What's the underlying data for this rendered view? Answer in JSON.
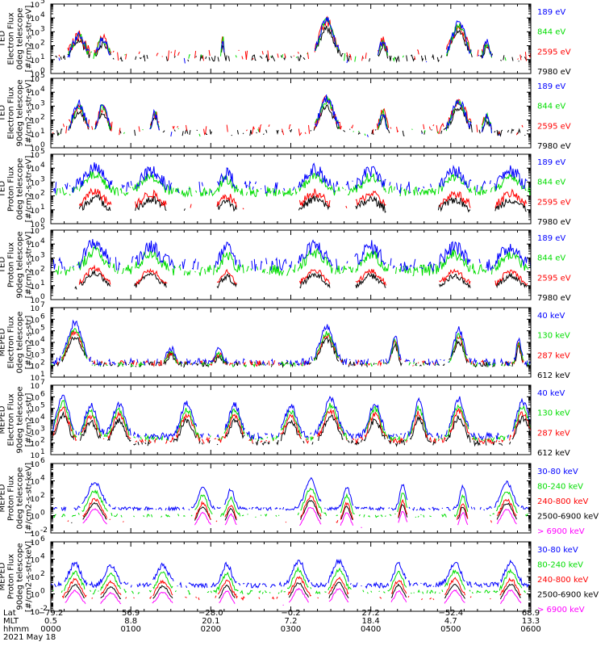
{
  "colors": {
    "blue": "#0000ff",
    "green": "#00dd00",
    "red": "#ff0000",
    "black": "#000000",
    "magenta": "#ff00ff"
  },
  "footer": {
    "row_labels": [
      "Lat",
      "MLT",
      "hhmm",
      "2021 May 18"
    ],
    "columns": [
      {
        "lat": "−79.2",
        "mlt": "0.5",
        "hhmm": "0000"
      },
      {
        "lat": "56.9",
        "mlt": "8.8",
        "hhmm": "0100"
      },
      {
        "lat": "−28.0",
        "mlt": "20.1",
        "hhmm": "0200"
      },
      {
        "lat": "−0.2",
        "mlt": "7.2",
        "hhmm": "0300"
      },
      {
        "lat": "27.2",
        "mlt": "18.4",
        "hhmm": "0400"
      },
      {
        "lat": "−52.4",
        "mlt": "4.7",
        "hhmm": "0500"
      },
      {
        "lat": "68.9",
        "mlt": "13.3",
        "hhmm": "0600"
      }
    ]
  },
  "chart_data": [
    {
      "type": "line",
      "ylabel": [
        "TED",
        "Electron Flux",
        "0deg telescope",
        "[#/cm2-s-str-eV]"
      ],
      "y_log_range": [
        0,
        5
      ],
      "yticks": [
        {
          "exp": "0"
        },
        {
          "exp": "1"
        },
        {
          "exp": "2"
        },
        {
          "exp": "3"
        },
        {
          "exp": "4"
        },
        {
          "exp": "5"
        }
      ],
      "x_range_hours": [
        0,
        6
      ],
      "series": [
        {
          "name": "7980 eV",
          "color": "#000000",
          "base": 1.1,
          "noise": 0.25,
          "fill": 0.45
        },
        {
          "name": "2595 eV",
          "color": "#ff0000",
          "base": 1.3,
          "noise": 0.4,
          "fill": 0.35
        },
        {
          "name": "844 eV",
          "color": "#00dd00",
          "base": 1.1,
          "noise": 0.3,
          "fill": 0.2
        },
        {
          "name": "189 eV",
          "color": "#0000ff",
          "base": 1.0,
          "noise": 0.3,
          "fill": 0.1
        }
      ],
      "events": [
        [
          0.35,
          0.1,
          1.8
        ],
        [
          0.65,
          0.08,
          1.5
        ],
        [
          2.15,
          0.02,
          1.6
        ],
        [
          3.45,
          0.12,
          3.0
        ],
        [
          4.15,
          0.05,
          1.4
        ],
        [
          5.1,
          0.12,
          2.6
        ],
        [
          5.45,
          0.05,
          1.2
        ]
      ]
    },
    {
      "type": "line",
      "ylabel": [
        "TED",
        "Electron Flux",
        "90deg telescope",
        "[#/cm2-s-str-eV]"
      ],
      "y_log_range": [
        0,
        5
      ],
      "yticks": [
        {
          "exp": "0"
        },
        {
          "exp": "1"
        },
        {
          "exp": "2"
        },
        {
          "exp": "3"
        },
        {
          "exp": "4"
        },
        {
          "exp": "5"
        }
      ],
      "x_range_hours": [
        0,
        6
      ],
      "series": [
        {
          "name": "7980 eV",
          "color": "#000000",
          "base": 1.1,
          "noise": 0.25,
          "fill": 0.45
        },
        {
          "name": "2595 eV",
          "color": "#ff0000",
          "base": 1.3,
          "noise": 0.4,
          "fill": 0.35
        },
        {
          "name": "844 eV",
          "color": "#00dd00",
          "base": 1.1,
          "noise": 0.3,
          "fill": 0.2
        },
        {
          "name": "189 eV",
          "color": "#0000ff",
          "base": 1.0,
          "noise": 0.3,
          "fill": 0.1
        }
      ],
      "events": [
        [
          0.35,
          0.1,
          2.2
        ],
        [
          0.65,
          0.08,
          2.0
        ],
        [
          1.3,
          0.05,
          1.5
        ],
        [
          3.45,
          0.12,
          2.6
        ],
        [
          4.15,
          0.05,
          1.6
        ],
        [
          5.1,
          0.12,
          2.4
        ],
        [
          5.45,
          0.05,
          1.2
        ]
      ]
    },
    {
      "type": "line",
      "ylabel": [
        "TED",
        "Proton Flux",
        "0deg telescope",
        "[#/cm2-s-str-eV]"
      ],
      "y_log_range": [
        0,
        5
      ],
      "yticks": [
        {
          "exp": "0"
        },
        {
          "exp": "1"
        },
        {
          "exp": "2"
        },
        {
          "exp": "3"
        },
        {
          "exp": "4"
        },
        {
          "exp": "5"
        }
      ],
      "x_range_hours": [
        0,
        6
      ],
      "series": [
        {
          "name": "7980 eV",
          "color": "#000000",
          "base": 0.9,
          "noise": 0.3,
          "fill": 0.05
        },
        {
          "name": "2595 eV",
          "color": "#ff0000",
          "base": 1.2,
          "noise": 0.3,
          "fill": 0.05
        },
        {
          "name": "844 eV",
          "color": "#00dd00",
          "base": 2.3,
          "noise": 0.35,
          "fill": 0.8
        },
        {
          "name": "189 eV",
          "color": "#0000ff",
          "base": 2.6,
          "noise": 0.45,
          "fill": 0.55
        }
      ],
      "events": [
        [
          0.55,
          0.15,
          1.4
        ],
        [
          1.25,
          0.15,
          1.2
        ],
        [
          2.2,
          0.1,
          1.0
        ],
        [
          3.3,
          0.15,
          1.3
        ],
        [
          4.0,
          0.15,
          1.2
        ],
        [
          5.05,
          0.15,
          1.2
        ],
        [
          5.75,
          0.15,
          1.2
        ]
      ]
    },
    {
      "type": "line",
      "ylabel": [
        "TED",
        "Proton Flux",
        "90deg telescope",
        "[#/cm2-s-str-eV]"
      ],
      "y_log_range": [
        0,
        5
      ],
      "yticks": [
        {
          "exp": "0"
        },
        {
          "exp": "1"
        },
        {
          "exp": "2"
        },
        {
          "exp": "3"
        },
        {
          "exp": "4"
        },
        {
          "exp": "5"
        }
      ],
      "x_range_hours": [
        0,
        6
      ],
      "series": [
        {
          "name": "7980 eV",
          "color": "#000000",
          "base": 0.8,
          "noise": 0.2,
          "fill": 0.03
        },
        {
          "name": "2595 eV",
          "color": "#ff0000",
          "base": 1.0,
          "noise": 0.2,
          "fill": 0.03
        },
        {
          "name": "844 eV",
          "color": "#00dd00",
          "base": 2.1,
          "noise": 0.4,
          "fill": 0.75
        },
        {
          "name": "189 eV",
          "color": "#0000ff",
          "base": 2.5,
          "noise": 0.5,
          "fill": 0.55
        }
      ],
      "events": [
        [
          0.55,
          0.15,
          1.6
        ],
        [
          1.25,
          0.15,
          1.4
        ],
        [
          2.2,
          0.1,
          1.2
        ],
        [
          3.3,
          0.15,
          1.4
        ],
        [
          4.0,
          0.15,
          1.3
        ],
        [
          5.05,
          0.15,
          1.3
        ],
        [
          5.75,
          0.15,
          1.3
        ]
      ]
    },
    {
      "type": "line",
      "ylabel": [
        "MEPED",
        "Electron Flux",
        "0deg telescope",
        "[#/cm2-s-str]"
      ],
      "y_log_range": [
        1,
        7
      ],
      "yticks": [
        {
          "exp": "1"
        },
        {
          "exp": "2"
        },
        {
          "exp": "3"
        },
        {
          "exp": "4"
        },
        {
          "exp": "5"
        },
        {
          "exp": "6"
        },
        {
          "exp": "7"
        }
      ],
      "x_range_hours": [
        0,
        6
      ],
      "series": [
        {
          "name": "612 keV",
          "color": "#000000",
          "base": 2.1,
          "noise": 0.25,
          "fill": 0.6
        },
        {
          "name": "287 keV",
          "color": "#ff0000",
          "base": 2.2,
          "noise": 0.25,
          "fill": 0.55
        },
        {
          "name": "130 keV",
          "color": "#00dd00",
          "base": 2.1,
          "noise": 0.2,
          "fill": 0.5
        },
        {
          "name": "40 keV",
          "color": "#0000ff",
          "base": 2.3,
          "noise": 0.3,
          "fill": 0.6
        }
      ],
      "events": [
        [
          0.3,
          0.12,
          3.4
        ],
        [
          1.5,
          0.06,
          1.2
        ],
        [
          2.1,
          0.06,
          1.0
        ],
        [
          3.45,
          0.12,
          3.0
        ],
        [
          4.3,
          0.05,
          2.4
        ],
        [
          5.1,
          0.08,
          2.8
        ],
        [
          5.85,
          0.04,
          2.0
        ]
      ]
    },
    {
      "type": "line",
      "ylabel": [
        "MEPED",
        "Electron Flux",
        "90deg telescope",
        "[#/cm2-s-str]"
      ],
      "y_log_range": [
        1,
        7
      ],
      "yticks": [
        {
          "exp": "1"
        },
        {
          "exp": "2"
        },
        {
          "exp": "3"
        },
        {
          "exp": "4"
        },
        {
          "exp": "5"
        },
        {
          "exp": "6"
        },
        {
          "exp": "7"
        }
      ],
      "x_range_hours": [
        0,
        6
      ],
      "series": [
        {
          "name": "612 keV",
          "color": "#000000",
          "base": 2.0,
          "noise": 0.25,
          "fill": 0.6
        },
        {
          "name": "287 keV",
          "color": "#ff0000",
          "base": 2.2,
          "noise": 0.25,
          "fill": 0.6
        },
        {
          "name": "130 keV",
          "color": "#00dd00",
          "base": 2.4,
          "noise": 0.25,
          "fill": 0.65
        },
        {
          "name": "40 keV",
          "color": "#0000ff",
          "base": 2.6,
          "noise": 0.3,
          "fill": 0.7
        }
      ],
      "events": [
        [
          0.15,
          0.1,
          3.5
        ],
        [
          0.5,
          0.1,
          2.6
        ],
        [
          0.85,
          0.1,
          2.8
        ],
        [
          1.7,
          0.1,
          2.8
        ],
        [
          2.3,
          0.1,
          2.7
        ],
        [
          3.0,
          0.1,
          2.6
        ],
        [
          3.5,
          0.12,
          3.2
        ],
        [
          4.05,
          0.1,
          2.8
        ],
        [
          4.6,
          0.08,
          3.0
        ],
        [
          5.1,
          0.1,
          3.2
        ],
        [
          5.9,
          0.1,
          3.0
        ]
      ]
    },
    {
      "type": "line",
      "ylabel": [
        "MEPED",
        "Proton Flux",
        "0deg telescope",
        "[#/cm2-s-str-keV]"
      ],
      "y_log_range": [
        -2,
        6
      ],
      "yticks": [
        {
          "exp": "-2"
        },
        {
          "exp": "0"
        },
        {
          "exp": "2"
        },
        {
          "exp": "4"
        },
        {
          "exp": "6"
        }
      ],
      "x_range_hours": [
        0,
        6
      ],
      "series": [
        {
          "name": "> 6900 keV",
          "color": "#ff00ff",
          "base": -1.4,
          "noise": 0.1,
          "fill": 0.05
        },
        {
          "name": "2500-6900 keV",
          "color": "#000000",
          "base": -0.9,
          "noise": 0.1,
          "fill": 0.05
        },
        {
          "name": "240-800 keV",
          "color": "#ff0000",
          "base": -0.7,
          "noise": 0.2,
          "fill": 0.2
        },
        {
          "name": "80-240 keV",
          "color": "#00dd00",
          "base": 0.0,
          "noise": 0.2,
          "fill": 0.55
        },
        {
          "name": "30-80 keV",
          "color": "#0000ff",
          "base": 0.8,
          "noise": 0.2,
          "fill": 0.8
        }
      ],
      "events": [
        [
          0.55,
          0.12,
          3.0
        ],
        [
          1.9,
          0.08,
          2.5
        ],
        [
          2.25,
          0.06,
          2.2
        ],
        [
          3.25,
          0.1,
          3.4
        ],
        [
          3.7,
          0.06,
          2.5
        ],
        [
          4.4,
          0.05,
          2.8
        ],
        [
          5.15,
          0.05,
          2.5
        ],
        [
          5.7,
          0.1,
          3.0
        ]
      ]
    },
    {
      "type": "line",
      "ylabel": [
        "MEPED",
        "Proton Flux",
        "90deg telescope",
        "[#/cm2-s-str-keV]"
      ],
      "y_log_range": [
        -2,
        6
      ],
      "yticks": [
        {
          "exp": "-2"
        },
        {
          "exp": "0"
        },
        {
          "exp": "2"
        },
        {
          "exp": "4"
        },
        {
          "exp": "6"
        }
      ],
      "x_range_hours": [
        0,
        6
      ],
      "series": [
        {
          "name": "> 6900 keV",
          "color": "#ff00ff",
          "base": -1.4,
          "noise": 0.1,
          "fill": 0.05
        },
        {
          "name": "2500-6900 keV",
          "color": "#000000",
          "base": -0.9,
          "noise": 0.1,
          "fill": 0.05
        },
        {
          "name": "240-800 keV",
          "color": "#ff0000",
          "base": -0.5,
          "noise": 0.2,
          "fill": 0.3
        },
        {
          "name": "80-240 keV",
          "color": "#00dd00",
          "base": 0.2,
          "noise": 0.25,
          "fill": 0.6
        },
        {
          "name": "30-80 keV",
          "color": "#0000ff",
          "base": 1.0,
          "noise": 0.3,
          "fill": 0.8
        }
      ],
      "events": [
        [
          0.3,
          0.1,
          2.5
        ],
        [
          0.75,
          0.1,
          2.2
        ],
        [
          1.4,
          0.1,
          2.3
        ],
        [
          2.2,
          0.08,
          2.4
        ],
        [
          3.1,
          0.1,
          2.8
        ],
        [
          3.6,
          0.1,
          2.8
        ],
        [
          4.35,
          0.08,
          2.5
        ],
        [
          5.05,
          0.1,
          2.6
        ],
        [
          5.75,
          0.1,
          2.6
        ]
      ]
    }
  ]
}
